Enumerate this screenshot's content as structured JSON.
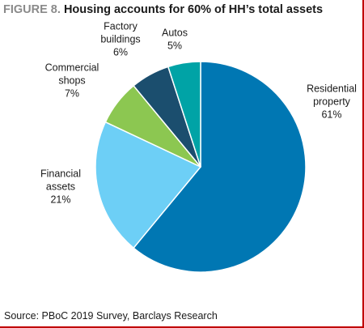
{
  "title": {
    "figure_label": "FIGURE 8.",
    "text": "Housing accounts for 60% of HH’s total assets"
  },
  "source": "Source: PBoC 2019 Survey, Barclays Research",
  "chart_data": {
    "type": "pie",
    "title": "Housing accounts for 60% of HH’s total assets",
    "start_angle_deg": 0,
    "direction": "clockwise",
    "legend": "none",
    "slices": [
      {
        "label_lines": [
          "Residential",
          "property"
        ],
        "value_label": "61%",
        "value": 61,
        "color": "#0077b3"
      },
      {
        "label_lines": [
          "Financial",
          "assets"
        ],
        "value_label": "21%",
        "value": 21,
        "color": "#6dcff6"
      },
      {
        "label_lines": [
          "Commercial",
          "shops"
        ],
        "value_label": "7%",
        "value": 7,
        "color": "#8cc751"
      },
      {
        "label_lines": [
          "Factory",
          "buildings"
        ],
        "value_label": "6%",
        "value": 6,
        "color": "#1b4e6e"
      },
      {
        "label_lines": [
          "Autos"
        ],
        "value_label": "5%",
        "value": 5,
        "color": "#00a3a6"
      }
    ]
  }
}
